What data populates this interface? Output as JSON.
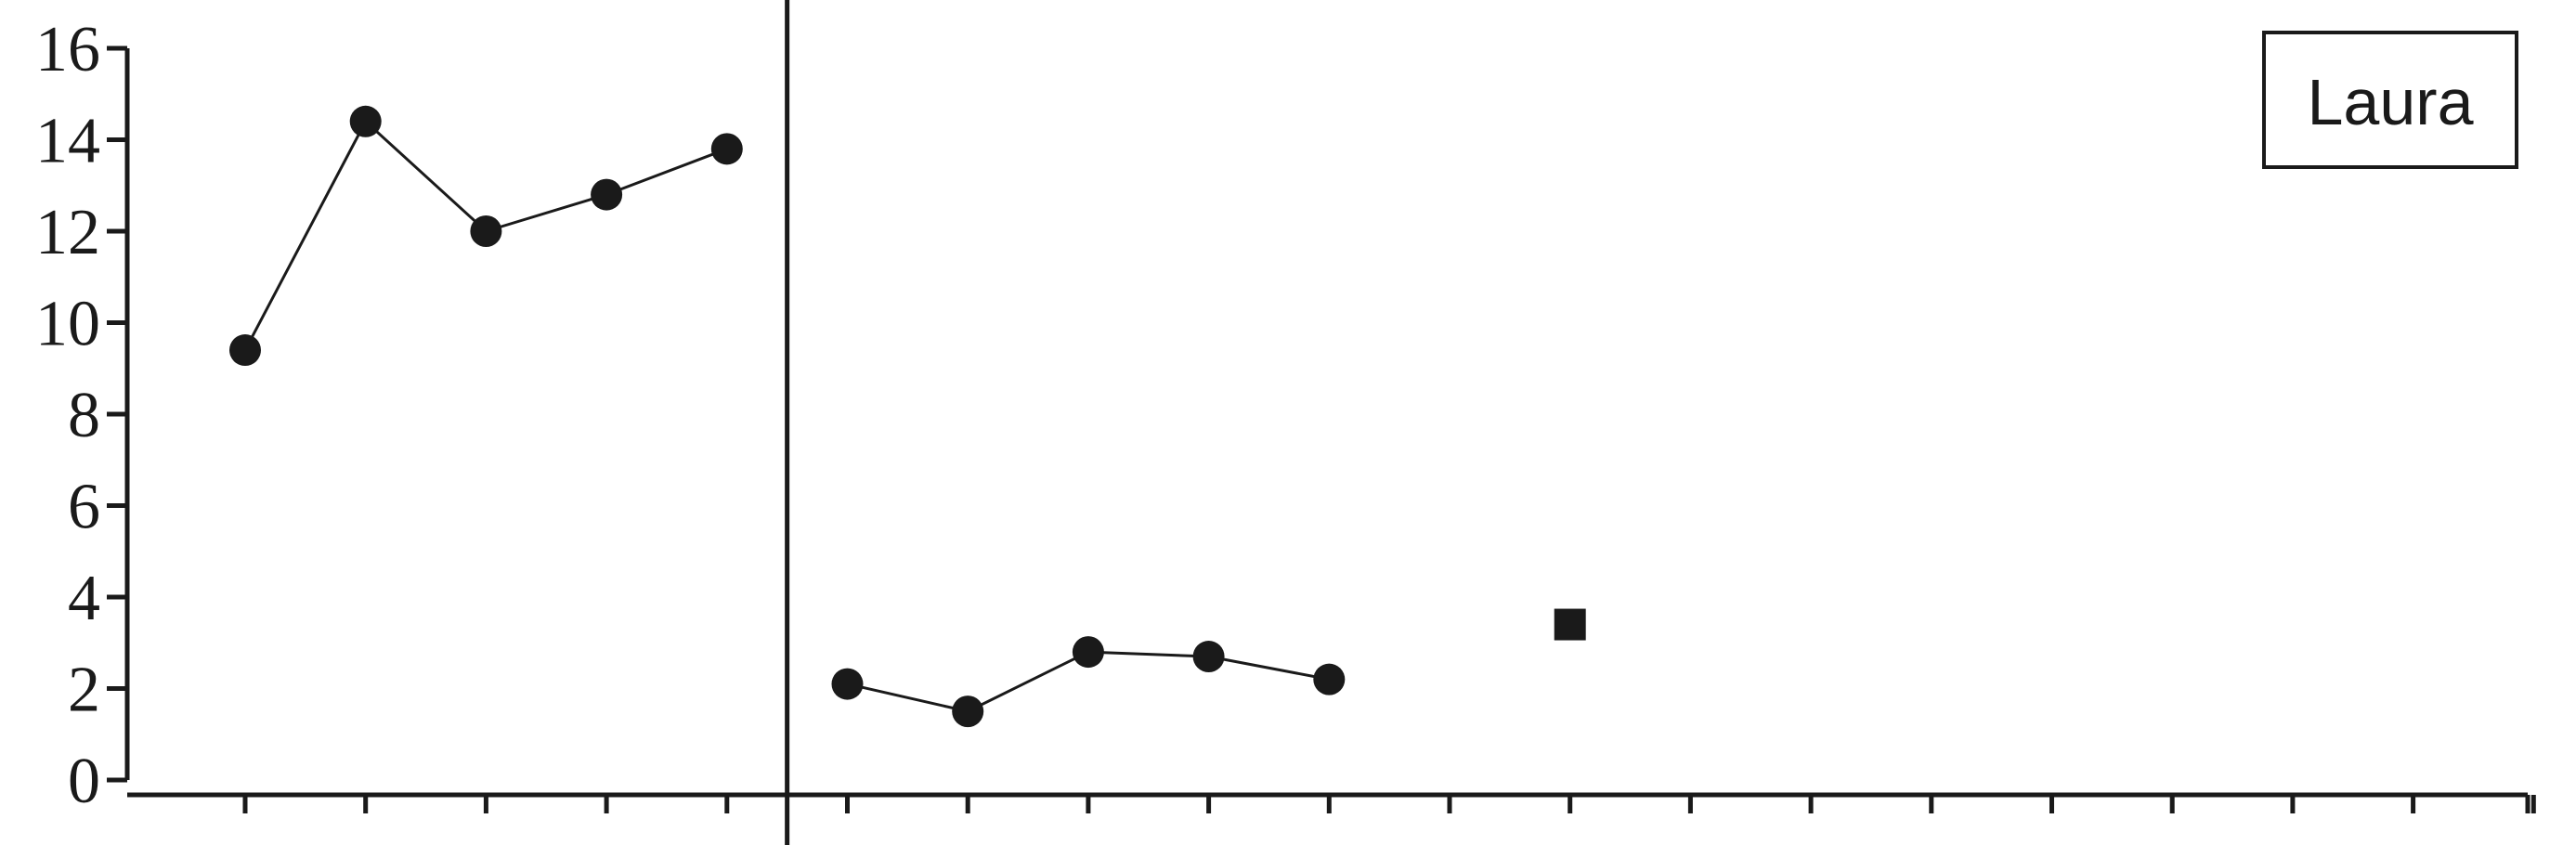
{
  "chart_data": {
    "type": "scatter",
    "title": "",
    "xlabel": "",
    "ylabel": "",
    "ylim": [
      0,
      16
    ],
    "yticks": [
      "0",
      "2",
      "4",
      "6",
      "8",
      "10",
      "12",
      "14",
      "16"
    ],
    "x_session_count": 20,
    "phase_change_after_session": 5.5,
    "legend_label": "Laura",
    "legend_placement": "top-right",
    "grid": false,
    "series": [
      {
        "marker": "circle",
        "connected": true,
        "x": [
          1,
          2,
          3,
          4,
          5
        ],
        "y": [
          9.4,
          14.4,
          12.0,
          12.8,
          13.8
        ]
      },
      {
        "marker": "circle",
        "connected": true,
        "x": [
          6,
          7,
          8,
          9,
          10
        ],
        "y": [
          2.1,
          1.5,
          2.8,
          2.7,
          2.2
        ]
      },
      {
        "marker": "square",
        "connected": false,
        "x": [
          12
        ],
        "y": [
          3.4
        ]
      }
    ],
    "colors": {
      "ink": "#1a1a1a",
      "background": "#ffffff"
    }
  }
}
